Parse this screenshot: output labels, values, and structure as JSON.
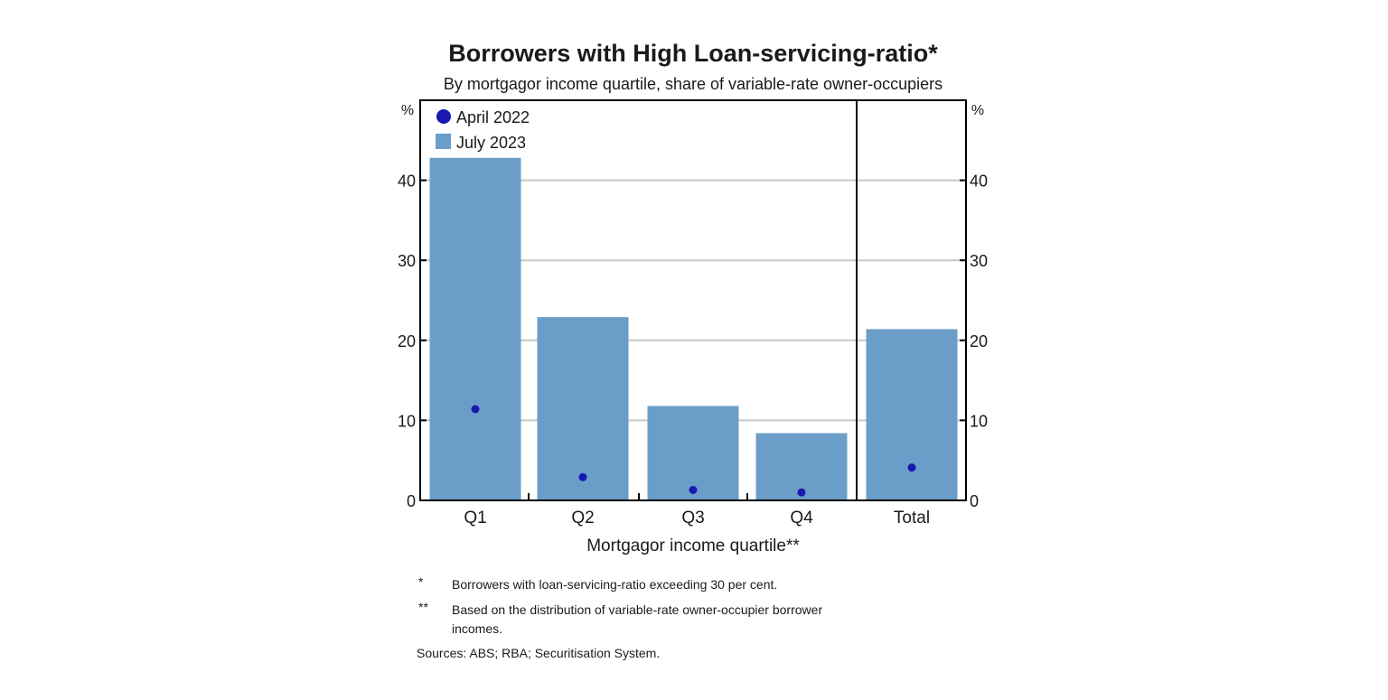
{
  "colors": {
    "bar": "#6a9ec8",
    "dot": "#1919b0",
    "grid": "#c8c8c8",
    "axis": "#000000"
  },
  "chart_data": {
    "type": "bar",
    "title": "Borrowers with High Loan-servicing-ratio*",
    "subtitle": "By mortgagor income quartile, share of variable-rate owner-occupiers",
    "xlabel": "Mortgagor income quartile**",
    "unit_left": "%",
    "unit_right": "%",
    "ylim": [
      0,
      50
    ],
    "yticks": [
      0,
      10,
      20,
      30,
      40
    ],
    "grid": true,
    "legend_position": "top-left",
    "categories": [
      "Q1",
      "Q2",
      "Q3",
      "Q4",
      "Total"
    ],
    "series": [
      {
        "name": "April 2022",
        "kind": "dot",
        "values": [
          11.4,
          2.9,
          1.3,
          1.0,
          4.1
        ]
      },
      {
        "name": "July 2023",
        "kind": "bar",
        "values": [
          42.8,
          22.9,
          11.8,
          8.4,
          21.4
        ]
      }
    ]
  },
  "notes": [
    {
      "marker": "*",
      "text": "Borrowers with loan-servicing-ratio exceeding 30 per cent."
    },
    {
      "marker": "**",
      "text": "Based on the distribution of variable-rate owner-occupier borrower incomes."
    }
  ],
  "sources": "Sources: ABS; RBA; Securitisation System."
}
